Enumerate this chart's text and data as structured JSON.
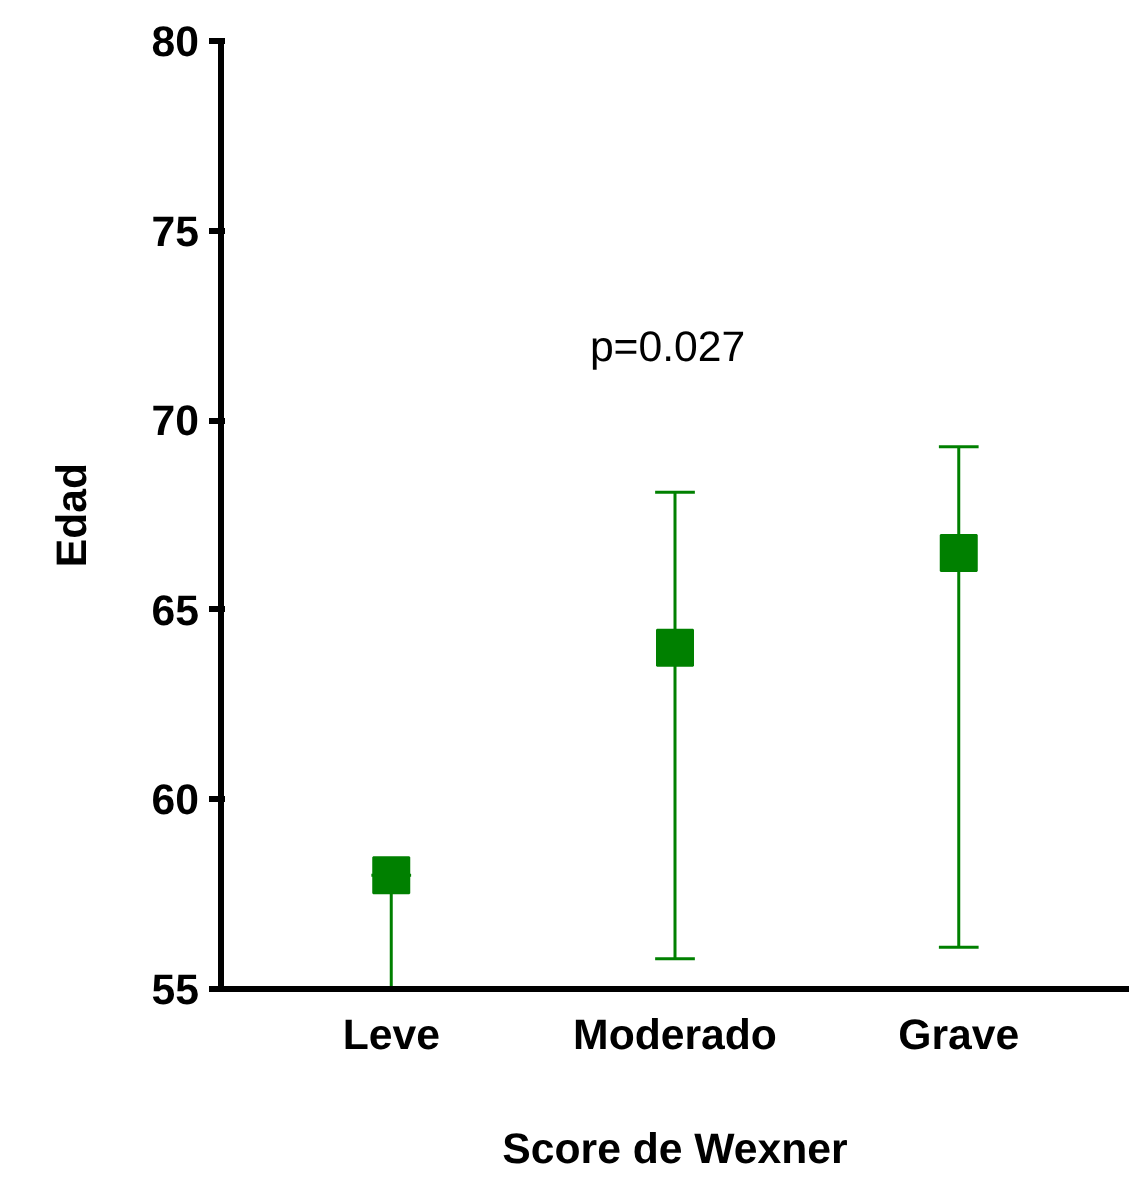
{
  "chart_data": {
    "type": "scatter",
    "xlabel": "Score de Wexner",
    "ylabel": "Edad",
    "categories": [
      "Leve",
      "Moderado",
      "Grave"
    ],
    "series": [
      {
        "color": "#008000",
        "values": [
          58,
          64,
          66.5
        ],
        "errors": [
          [
            55,
            58
          ],
          [
            55.8,
            68.1
          ],
          [
            56.1,
            69.3
          ]
        ]
      }
    ],
    "ylim": [
      55,
      80
    ],
    "yticks": [
      55,
      60,
      65,
      70,
      75,
      80
    ],
    "marker": "square",
    "grid": false,
    "annotations": [
      "p=0.027"
    ]
  }
}
